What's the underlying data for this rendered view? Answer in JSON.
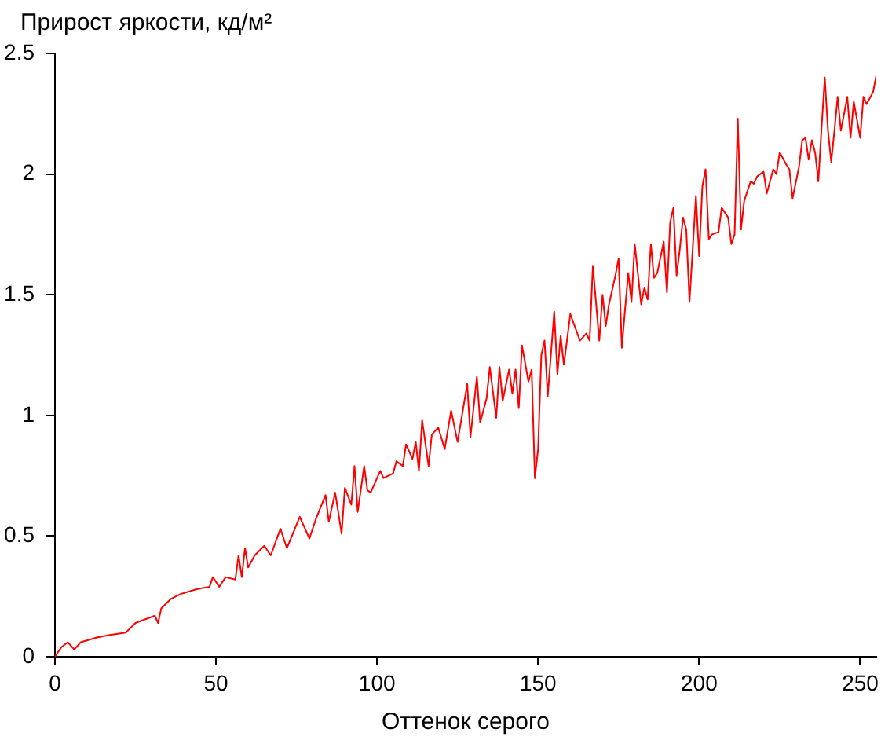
{
  "chart_data": {
    "type": "line",
    "ylabel": "Прирост яркости, кд/м²",
    "xlabel": "Оттенок серого",
    "x": [
      0,
      2,
      4,
      6,
      8,
      13,
      17,
      22,
      25,
      31,
      32,
      33,
      36,
      39,
      44,
      48,
      49,
      51,
      53,
      56,
      57,
      58,
      59,
      60,
      62,
      65,
      67,
      70,
      72,
      76,
      79,
      81,
      84,
      85,
      87,
      89,
      90,
      92,
      93,
      94,
      96,
      97,
      98,
      101,
      102,
      105,
      106,
      108,
      109,
      111,
      112,
      113,
      114,
      116,
      117,
      119,
      121,
      123,
      125,
      128,
      129,
      131,
      132,
      134,
      135,
      137,
      138,
      139,
      141,
      142,
      143,
      144,
      145,
      147,
      148,
      149,
      150,
      151,
      152,
      153,
      155,
      156,
      157,
      158,
      160,
      163,
      165,
      166,
      167,
      169,
      170,
      171,
      172,
      174,
      175,
      176,
      177,
      178,
      179,
      180,
      182,
      183,
      184,
      185,
      186,
      187,
      189,
      190,
      191,
      192,
      193,
      194,
      195,
      196,
      197,
      199,
      200,
      201,
      202,
      203,
      204,
      206,
      207,
      209,
      210,
      211,
      212,
      213,
      214,
      216,
      217,
      218,
      220,
      221,
      223,
      224,
      225,
      227,
      228,
      229,
      231,
      232,
      233,
      234,
      235,
      236,
      237,
      238,
      239,
      240,
      241,
      242,
      243,
      244,
      246,
      247,
      248,
      250,
      251,
      252,
      254,
      255
    ],
    "values": [
      0,
      0.04,
      0.06,
      0.03,
      0.06,
      0.08,
      0.09,
      0.1,
      0.14,
      0.17,
      0.14,
      0.2,
      0.24,
      0.26,
      0.28,
      0.29,
      0.33,
      0.29,
      0.33,
      0.32,
      0.42,
      0.33,
      0.45,
      0.37,
      0.42,
      0.46,
      0.42,
      0.53,
      0.45,
      0.58,
      0.49,
      0.57,
      0.67,
      0.56,
      0.68,
      0.51,
      0.7,
      0.63,
      0.79,
      0.6,
      0.79,
      0.69,
      0.68,
      0.77,
      0.74,
      0.76,
      0.81,
      0.79,
      0.88,
      0.82,
      0.89,
      0.77,
      0.98,
      0.79,
      0.92,
      0.95,
      0.86,
      1.02,
      0.89,
      1.13,
      0.91,
      1.16,
      0.97,
      1.07,
      1.2,
      0.99,
      1.2,
      1.06,
      1.19,
      1.09,
      1.19,
      1.03,
      1.29,
      1.14,
      1.19,
      0.74,
      0.86,
      1.25,
      1.31,
      1.08,
      1.43,
      1.17,
      1.33,
      1.21,
      1.42,
      1.31,
      1.34,
      1.31,
      1.62,
      1.31,
      1.5,
      1.37,
      1.46,
      1.58,
      1.65,
      1.28,
      1.44,
      1.59,
      1.47,
      1.71,
      1.46,
      1.53,
      1.48,
      1.71,
      1.57,
      1.59,
      1.72,
      1.51,
      1.8,
      1.86,
      1.58,
      1.69,
      1.82,
      1.77,
      1.47,
      1.91,
      1.66,
      1.95,
      2.02,
      1.73,
      1.75,
      1.76,
      1.86,
      1.82,
      1.71,
      1.75,
      2.23,
      1.77,
      1.89,
      1.97,
      1.96,
      1.99,
      2.01,
      1.92,
      2.02,
      2.0,
      2.09,
      2.04,
      2.02,
      1.9,
      2.03,
      2.14,
      2.15,
      2.06,
      2.14,
      2.09,
      1.97,
      2.19,
      2.4,
      2.18,
      2.05,
      2.18,
      2.32,
      2.18,
      2.32,
      2.15,
      2.3,
      2.15,
      2.32,
      2.29,
      2.34,
      2.41
    ],
    "color": "#ff0000",
    "xlim": [
      0,
      255
    ],
    "xticks": [
      0,
      50,
      100,
      150,
      200,
      250
    ],
    "ylim": [
      0,
      2.5
    ],
    "yticks": [
      0,
      0.5,
      1,
      1.5,
      2,
      2.5
    ],
    "grid": false,
    "legend": false
  }
}
